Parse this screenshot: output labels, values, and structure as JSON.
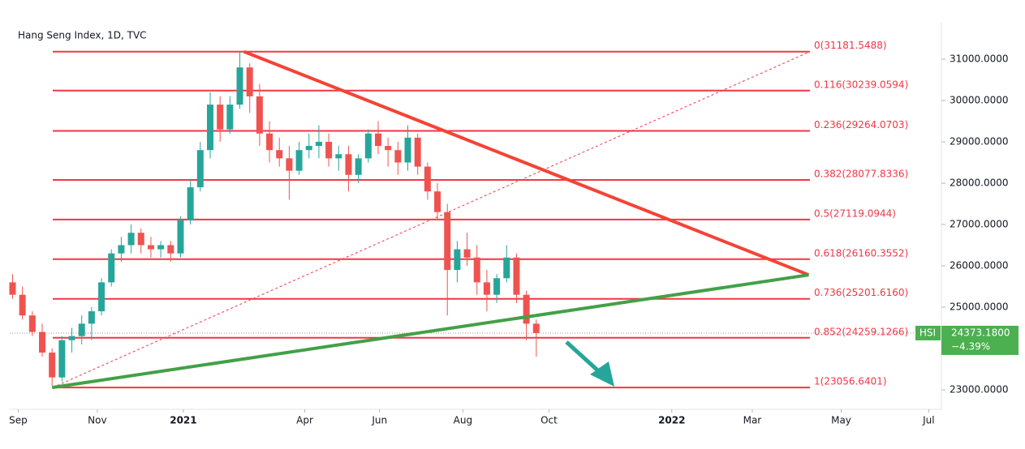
{
  "chart_data": {
    "type": "candlestick",
    "title": "Hang Seng Index, 1D, TVC",
    "xlim": [
      0,
      660
    ],
    "xticks": [
      {
        "value": 6,
        "label": "Sep"
      },
      {
        "value": 62,
        "label": "Nov"
      },
      {
        "value": 123,
        "label": "2021"
      },
      {
        "value": 209,
        "label": "Apr"
      },
      {
        "value": 262,
        "label": "Jun"
      },
      {
        "value": 321,
        "label": "Aug"
      },
      {
        "value": 382,
        "label": "Oct"
      },
      {
        "value": 469,
        "label": "2022"
      },
      {
        "value": 526,
        "label": "Mar"
      },
      {
        "value": 589,
        "label": "May"
      },
      {
        "value": 651,
        "label": "Jul"
      }
    ],
    "ylim": [
      22529,
      31882
    ],
    "yticks": [
      {
        "value": 23000,
        "label": "23000.0000"
      },
      {
        "value": 25000,
        "label": "25000.0000"
      },
      {
        "value": 26000,
        "label": "26000.0000"
      },
      {
        "value": 27000,
        "label": "27000.0000"
      },
      {
        "value": 28000,
        "label": "28000.0000"
      },
      {
        "value": 29000,
        "label": "29000.0000"
      },
      {
        "value": 30000,
        "label": "30000.0000"
      },
      {
        "value": 31000,
        "label": "31000.0000"
      }
    ],
    "up_color": "#26a69a",
    "down_color": "#ef5350",
    "x": [
      2,
      9,
      16,
      23,
      30,
      37,
      44,
      51,
      58,
      65,
      72,
      79,
      86,
      93,
      100,
      107,
      114,
      121,
      128,
      135,
      142,
      149,
      156,
      163,
      170,
      177,
      184,
      191,
      198,
      205,
      212,
      219,
      226,
      233,
      240,
      247,
      254,
      261,
      268,
      275,
      282,
      289,
      296,
      303,
      310,
      317,
      324,
      331,
      338,
      345,
      352,
      359,
      366,
      373
    ],
    "ohlc": [
      [
        25600,
        25800,
        25200,
        25300
      ],
      [
        25300,
        25500,
        24700,
        24800
      ],
      [
        24800,
        24900,
        24300,
        24400
      ],
      [
        24400,
        24600,
        23800,
        23900
      ],
      [
        23900,
        24000,
        23100,
        23300
      ],
      [
        23300,
        24300,
        23200,
        24200
      ],
      [
        24200,
        24500,
        23900,
        24300
      ],
      [
        24300,
        24800,
        24100,
        24600
      ],
      [
        24600,
        25000,
        24200,
        24900
      ],
      [
        24900,
        25700,
        24800,
        25600
      ],
      [
        25600,
        26400,
        25500,
        26300
      ],
      [
        26300,
        26700,
        26100,
        26500
      ],
      [
        26500,
        27000,
        26300,
        26800
      ],
      [
        26800,
        26900,
        26300,
        26500
      ],
      [
        26500,
        26700,
        26200,
        26400
      ],
      [
        26400,
        26600,
        26200,
        26500
      ],
      [
        26500,
        26600,
        26100,
        26300
      ],
      [
        26300,
        27200,
        26200,
        27100
      ],
      [
        27100,
        28100,
        27000,
        27900
      ],
      [
        27900,
        29000,
        27800,
        28800
      ],
      [
        28800,
        30200,
        28600,
        29900
      ],
      [
        29900,
        30100,
        29000,
        29300
      ],
      [
        29300,
        30100,
        29200,
        29900
      ],
      [
        29900,
        31180,
        29800,
        30800
      ],
      [
        30800,
        30900,
        29700,
        30100
      ],
      [
        30100,
        30400,
        28900,
        29200
      ],
      [
        29200,
        29500,
        28500,
        28800
      ],
      [
        28800,
        29100,
        28400,
        28600
      ],
      [
        28600,
        28900,
        27600,
        28300
      ],
      [
        28300,
        29000,
        28200,
        28800
      ],
      [
        28800,
        29200,
        28600,
        28900
      ],
      [
        28900,
        29400,
        28600,
        29000
      ],
      [
        29000,
        29200,
        28400,
        28600
      ],
      [
        28600,
        28900,
        28300,
        28700
      ],
      [
        28700,
        28900,
        27800,
        28200
      ],
      [
        28200,
        28700,
        28000,
        28600
      ],
      [
        28600,
        29300,
        28500,
        29200
      ],
      [
        29200,
        29500,
        28700,
        28900
      ],
      [
        28900,
        29100,
        28400,
        28800
      ],
      [
        28800,
        29000,
        28200,
        28500
      ],
      [
        28500,
        29400,
        28300,
        29100
      ],
      [
        29100,
        29200,
        28200,
        28400
      ],
      [
        28400,
        28500,
        27600,
        27800
      ],
      [
        27800,
        28000,
        27100,
        27300
      ],
      [
        27300,
        27500,
        24800,
        25900
      ],
      [
        25900,
        26600,
        25600,
        26400
      ],
      [
        26400,
        26800,
        26000,
        26200
      ],
      [
        26200,
        26500,
        25300,
        25600
      ],
      [
        25600,
        25900,
        24900,
        25300
      ],
      [
        25300,
        25800,
        25100,
        25700
      ],
      [
        25700,
        26500,
        25600,
        26200
      ],
      [
        26200,
        26300,
        25100,
        25300
      ],
      [
        25300,
        25400,
        24200,
        24600
      ],
      [
        24600,
        24700,
        23800,
        24373.18
      ]
    ],
    "fib_levels": [
      {
        "value": 31181.5488,
        "label": "0(31181.5488)"
      },
      {
        "value": 30239.0594,
        "label": "0.116(30239.0594)"
      },
      {
        "value": 29264.0703,
        "label": "0.236(29264.0703)"
      },
      {
        "value": 28077.8336,
        "label": "0.382(28077.8336)"
      },
      {
        "value": 27119.0944,
        "label": "0.5(27119.0944)"
      },
      {
        "value": 26160.3552,
        "label": "0.618(26160.3552)"
      },
      {
        "value": 25201.616,
        "label": "0.736(25201.6160)"
      },
      {
        "value": 24259.1266,
        "label": "0.852(24259.1266)"
      },
      {
        "value": 23056.6401,
        "label": "1(23056.6401)"
      }
    ],
    "fib_color": "#f23645",
    "trendlines": [
      {
        "color": "#f44336",
        "x": [
          166,
          566
        ],
        "y": [
          31181.5,
          25780
        ]
      },
      {
        "color": "#43a047",
        "x": [
          30,
          566
        ],
        "y": [
          23056.6,
          25780
        ]
      }
    ],
    "last_price": {
      "symbol": "HSI",
      "value": 24373.18,
      "label": "24373.1800",
      "change": "−4.39%",
      "color": "#4caf50"
    }
  }
}
